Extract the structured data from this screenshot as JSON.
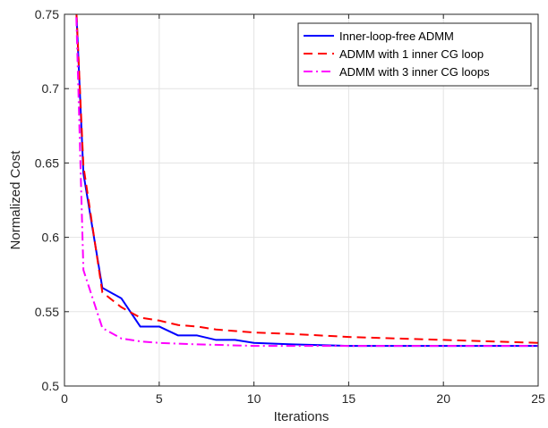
{
  "chart_data": {
    "type": "line",
    "title": "",
    "xlabel": "Iterations",
    "ylabel": "Normalized Cost",
    "xlim": [
      0,
      25
    ],
    "ylim": [
      0.5,
      0.75
    ],
    "x_ticks": [
      0,
      5,
      10,
      15,
      20,
      25
    ],
    "y_ticks": [
      0.5,
      0.55,
      0.6,
      0.65,
      0.7,
      0.75
    ],
    "x_tick_labels": [
      "0",
      "5",
      "10",
      "15",
      "20",
      "25"
    ],
    "y_tick_labels": [
      "0.5",
      "0.55",
      "0.6",
      "0.65",
      "0.7",
      "0.75"
    ],
    "grid": true,
    "legend_position": "top-right",
    "series": [
      {
        "name": "Inner-loop-free ADMM",
        "color": "#0000ff",
        "dash": "solid",
        "x": [
          0.6,
          1,
          2,
          3,
          4,
          5,
          6,
          7,
          8,
          9,
          10,
          12,
          15,
          20,
          25
        ],
        "y": [
          0.76,
          0.643,
          0.566,
          0.559,
          0.54,
          0.54,
          0.534,
          0.534,
          0.531,
          0.531,
          0.529,
          0.528,
          0.527,
          0.527,
          0.527
        ]
      },
      {
        "name": "ADMM with 1 inner CG loop",
        "color": "#ff0000",
        "dash": "dashed",
        "x": [
          0.6,
          1,
          2,
          3,
          4,
          5,
          6,
          7,
          8,
          10,
          12,
          15,
          20,
          25
        ],
        "y": [
          0.76,
          0.648,
          0.563,
          0.553,
          0.546,
          0.544,
          0.541,
          0.54,
          0.538,
          0.536,
          0.535,
          0.533,
          0.531,
          0.529
        ]
      },
      {
        "name": "ADMM with 3 inner CG loops",
        "color": "#ff00ff",
        "dash": "dashdot",
        "x": [
          0.6,
          1,
          2,
          3,
          4,
          5,
          7,
          10,
          15,
          20,
          25
        ],
        "y": [
          0.76,
          0.578,
          0.539,
          0.532,
          0.53,
          0.529,
          0.528,
          0.527,
          0.527,
          0.527,
          0.527
        ]
      }
    ]
  }
}
